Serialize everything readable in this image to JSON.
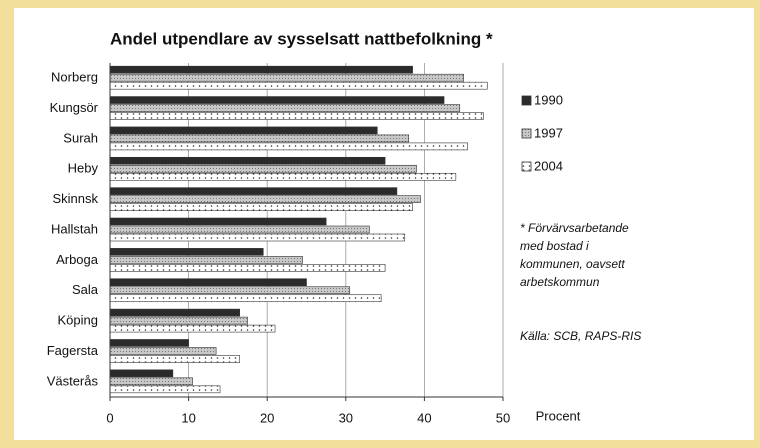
{
  "chart_data": {
    "type": "hbar",
    "title": "Andel utpendlare av sysselsatt nattbefolkning *",
    "categories": [
      "Norberg",
      "Kungsör",
      "Surah",
      "Heby",
      "Skinnsk",
      "Hallstah",
      "Arboga",
      "Sala",
      "Köping",
      "Fagersta",
      "Västerås"
    ],
    "series": [
      {
        "name": "1990",
        "color": "#2b2b2b",
        "values": [
          38.5,
          42.5,
          34,
          35,
          36.5,
          27.5,
          19.5,
          25,
          16.5,
          10,
          8
        ]
      },
      {
        "name": "1997",
        "color": "#b0b0b0",
        "values": [
          45,
          44.5,
          38,
          39,
          39.5,
          33,
          24.5,
          30.5,
          17.5,
          13.5,
          10.5
        ]
      },
      {
        "name": "2004",
        "color": "#ffffff",
        "values": [
          48,
          47.5,
          45.5,
          44,
          38.5,
          37.5,
          35,
          34.5,
          21,
          16.5,
          14
        ]
      }
    ],
    "xlim": [
      0,
      50
    ],
    "xticks": [
      0,
      10,
      20,
      30,
      40,
      50
    ],
    "x_label": "Procent",
    "grid": true,
    "note": [
      "* Förvärvsarbetande",
      "med bostad i",
      "kommunen, oavsett",
      "arbetskommun"
    ],
    "source": "Källa: SCB, RAPS-RIS"
  }
}
